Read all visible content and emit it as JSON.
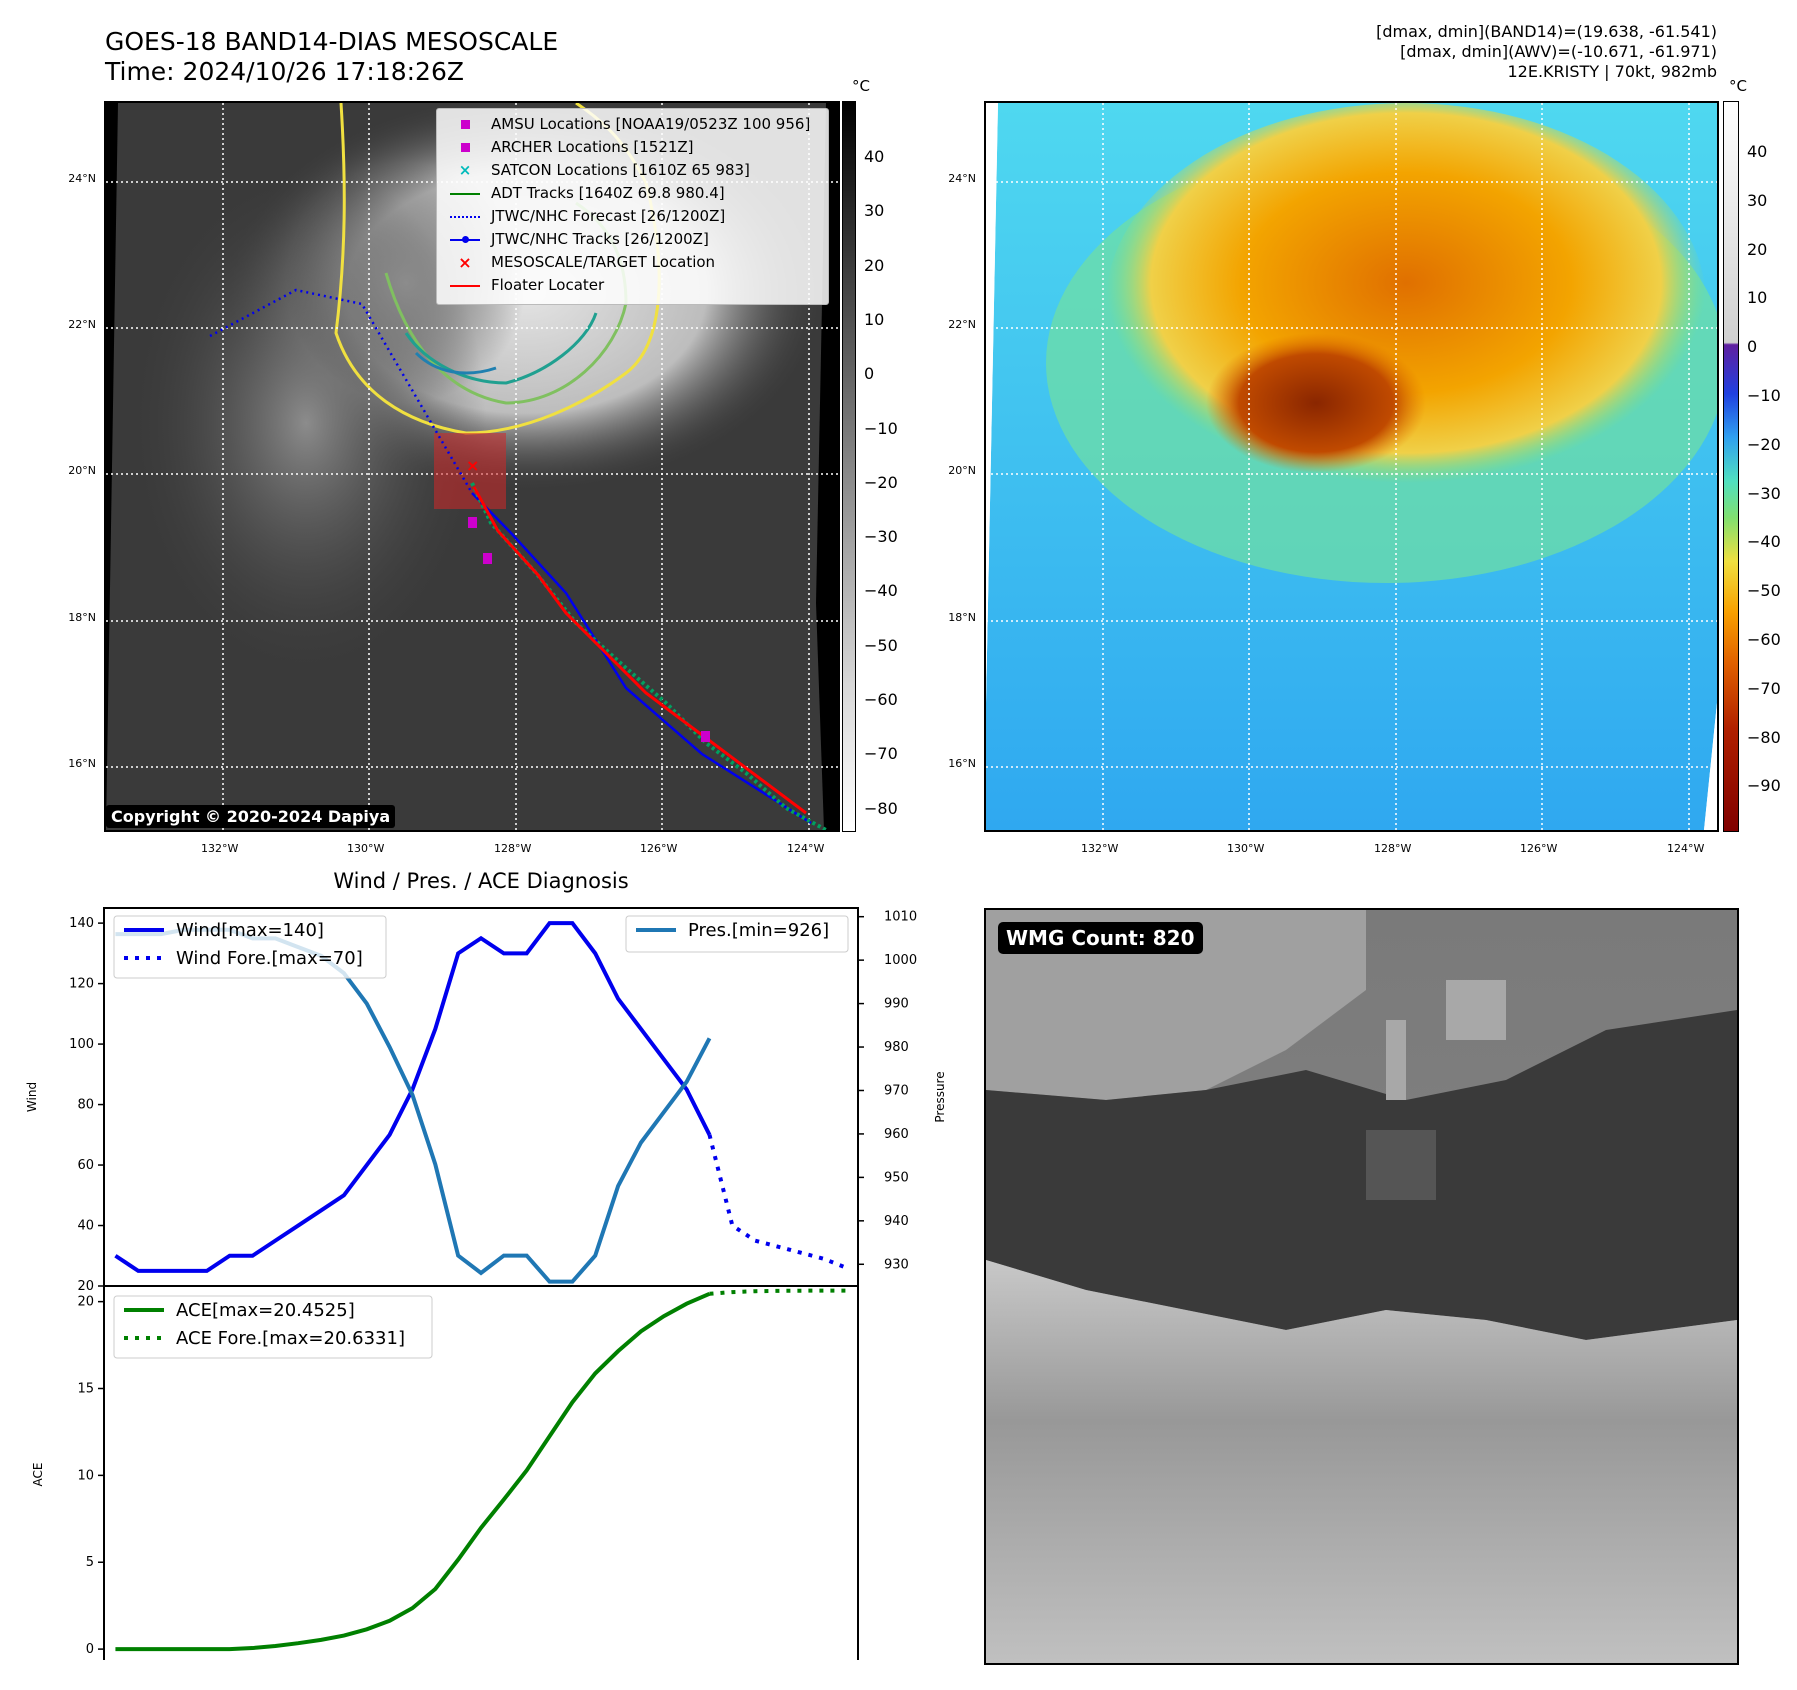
{
  "header": {
    "title_line1": "GOES-18 BAND14-DIAS MESOSCALE",
    "title_line2": "Time: 2024/10/26 17:18:26Z",
    "info_line1": "[dmax, dmin](BAND14)=(19.638, -61.541)",
    "info_line2": "[dmax, dmin](AWV)=(-10.671, -61.971)",
    "info_line3": "12E.KRISTY | 70kt, 982mb"
  },
  "map_axes": {
    "lat_labels": [
      "24°N",
      "22°N",
      "20°N",
      "18°N",
      "16°N"
    ],
    "lon_labels": [
      "132°W",
      "130°W",
      "128°W",
      "126°W",
      "124°W"
    ]
  },
  "ir_map": {
    "colorbar_unit": "°C",
    "colorbar_ticks": [
      "40",
      "30",
      "20",
      "10",
      "0",
      "−10",
      "−20",
      "−30",
      "−40",
      "−50",
      "−60",
      "−70",
      "−80"
    ],
    "copyright": "Copyright © 2020-2024 Dapiya",
    "legend": [
      {
        "label": "AMSU Locations [NOAA19/0523Z 100 956]",
        "icon": "magenta-square",
        "color": "#cc00cc"
      },
      {
        "label": "ARCHER Locations [1521Z]",
        "icon": "magenta-square",
        "color": "#cc00cc"
      },
      {
        "label": "SATCON Locations [1610Z 65 983]",
        "icon": "cyan-x",
        "color": "#00bbbb"
      },
      {
        "label": "ADT Tracks [1640Z 69.8 980.4]",
        "icon": "green-line",
        "color": "#008000"
      },
      {
        "label": "JTWC/NHC Forecast [26/1200Z]",
        "icon": "blue-dotted-line",
        "color": "#0000ee"
      },
      {
        "label": "JTWC/NHC Tracks [26/1200Z]",
        "icon": "blue-dot-line",
        "color": "#0000ee"
      },
      {
        "label": "MESOSCALE/TARGET Location",
        "icon": "red-x",
        "color": "#ff0000"
      },
      {
        "label": "Floater Locater",
        "icon": "red-line",
        "color": "#ff0000"
      }
    ]
  },
  "awv_map": {
    "colorbar_unit": "°C",
    "colorbar_ticks": [
      "40",
      "30",
      "20",
      "10",
      "0",
      "−10",
      "−20",
      "−30",
      "−40",
      "−50",
      "−60",
      "−70",
      "−80",
      "−90"
    ]
  },
  "chart_data": [
    {
      "type": "line",
      "title": "Wind / Pres. / ACE Diagnosis",
      "ylabel": "Wind",
      "ylabel_right": "Pressure",
      "ylim": [
        20,
        145
      ],
      "ylim_right": [
        925,
        1012
      ],
      "yticks": [
        "140",
        "120",
        "100",
        "80",
        "60",
        "40",
        "20"
      ],
      "yticks_right": [
        "1010",
        "1000",
        "990",
        "980",
        "970",
        "960",
        "950",
        "940",
        "930"
      ],
      "x": [
        0,
        1,
        2,
        3,
        4,
        5,
        6,
        7,
        8,
        9,
        10,
        11,
        12,
        13,
        14,
        15,
        16,
        17,
        18,
        19,
        20,
        21,
        22,
        23,
        24,
        25,
        26
      ],
      "series": [
        {
          "name": "Wind[max=140]",
          "color": "#0000ee",
          "style": "solid",
          "values": [
            30,
            25,
            25,
            25,
            25,
            30,
            30,
            35,
            40,
            45,
            50,
            60,
            70,
            85,
            105,
            130,
            135,
            130,
            130,
            140,
            140,
            130,
            115,
            105,
            95,
            85,
            70
          ]
        },
        {
          "name": "Wind Fore.[max=70]",
          "color": "#0000ee",
          "style": "dotted",
          "x": [
            26,
            27,
            28,
            29,
            30,
            31,
            32
          ],
          "values": [
            70,
            40,
            35,
            33,
            31,
            29,
            26
          ]
        },
        {
          "name": "Pres.[min=926]",
          "color": "#1f77b4",
          "style": "solid",
          "axis": "right",
          "values": [
            1006,
            1006,
            1006,
            1007,
            1007,
            1007,
            1005,
            1005,
            1003,
            1001,
            997,
            990,
            980,
            969,
            953,
            932,
            928,
            932,
            932,
            926,
            926,
            932,
            948,
            958,
            965,
            972,
            982
          ]
        }
      ]
    },
    {
      "type": "line",
      "ylabel": "ACE",
      "ylim": [
        -0.8,
        20.9
      ],
      "yticks": [
        "20",
        "15",
        "10",
        "5",
        "0"
      ],
      "series": [
        {
          "name": "ACE[max=20.4525]",
          "color": "#008000",
          "style": "solid",
          "x": [
            0,
            1,
            2,
            3,
            4,
            5,
            6,
            7,
            8,
            9,
            10,
            11,
            12,
            13,
            14,
            15,
            16,
            17,
            18,
            19,
            20,
            21,
            22,
            23,
            24,
            25,
            26
          ],
          "values": [
            0,
            0,
            0,
            0,
            0,
            0,
            0.06,
            0.18,
            0.34,
            0.53,
            0.78,
            1.14,
            1.63,
            2.36,
            3.46,
            5.15,
            6.98,
            8.61,
            10.29,
            12.25,
            14.21,
            15.87,
            17.15,
            18.29,
            19.16,
            19.88,
            20.4525
          ]
        },
        {
          "name": "ACE Fore.[max=20.6331]",
          "color": "#008000",
          "style": "dotted",
          "x": [
            26,
            27,
            28,
            29,
            30,
            31,
            32
          ],
          "values": [
            20.4525,
            20.55,
            20.6,
            20.62,
            20.63,
            20.6331,
            20.6331
          ]
        }
      ]
    }
  ],
  "wmg_panel": {
    "count_label": "WMG Count: 820"
  }
}
